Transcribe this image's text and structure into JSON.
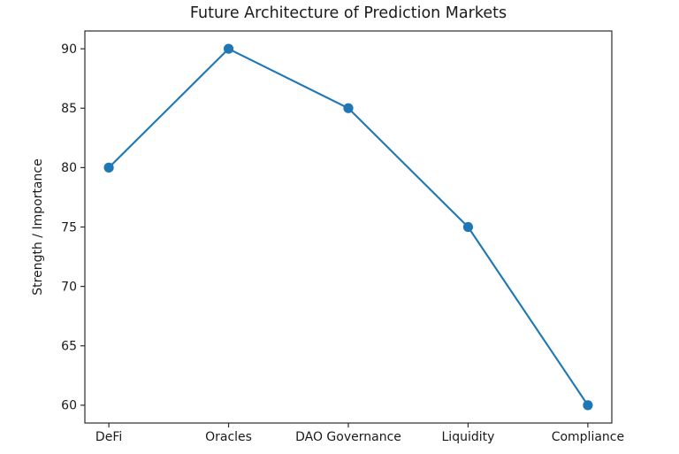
{
  "chart_data": {
    "type": "line",
    "title": "Future Architecture of Prediction Markets",
    "xlabel": "",
    "ylabel": "Strength / Importance",
    "categories": [
      "DeFi",
      "Oracles",
      "DAO Governance",
      "Liquidity",
      "Compliance"
    ],
    "values": [
      80,
      90,
      85,
      75,
      60
    ],
    "yticks": [
      60,
      65,
      70,
      75,
      80,
      85,
      90
    ],
    "ylim": [
      58.5,
      91.5
    ],
    "x_margin": 0.2,
    "grid": false,
    "legend": null,
    "line_color": "#1f77b4",
    "marker": "circle",
    "marker_radius": 5.6,
    "line_width": 2.1
  }
}
